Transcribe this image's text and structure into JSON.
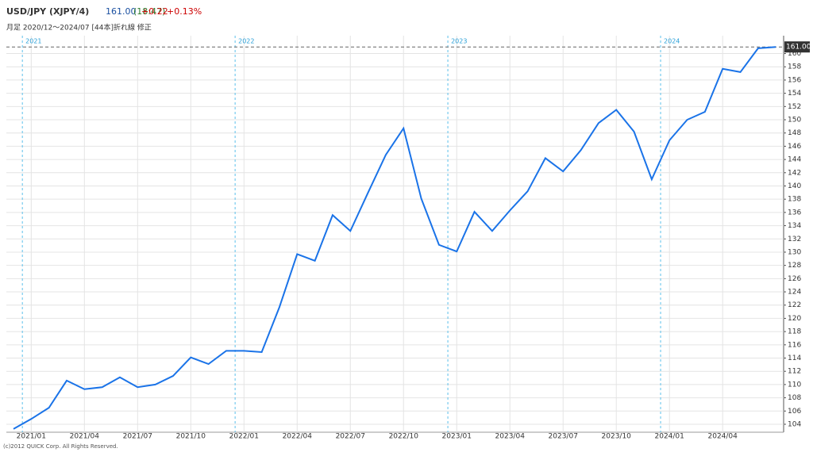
{
  "header": {
    "symbol": "USD/JPY (XJPY/4)",
    "price": "161.00",
    "time": "(18:47)",
    "change": "+0.22",
    "change_pct": "+0.13%",
    "subtitle": "月足  2020/12～2024/07 [44本]折れ線 修正"
  },
  "footer": "(c)2012 QUICK Corp. All Rights Reserved.",
  "chart_data": {
    "type": "line",
    "color": "#1a73e8",
    "categories": [
      null,
      "2021/01",
      null,
      null,
      "2021/04",
      null,
      null,
      "2021/07",
      null,
      null,
      "2021/10",
      null,
      null,
      "2022/01",
      null,
      null,
      "2022/04",
      null,
      null,
      "2022/07",
      null,
      null,
      "2022/10",
      null,
      null,
      "2023/01",
      null,
      null,
      "2023/04",
      null,
      null,
      "2023/07",
      null,
      null,
      "2023/10",
      null,
      null,
      "2024/01",
      null,
      null,
      "2024/04",
      null,
      null,
      null
    ],
    "values": [
      103.3,
      104.8,
      106.5,
      110.6,
      109.3,
      109.6,
      111.1,
      109.6,
      110.0,
      111.3,
      114.1,
      113.1,
      115.1,
      115.1,
      114.9,
      121.7,
      129.7,
      128.7,
      135.6,
      133.2,
      139.0,
      144.7,
      148.7,
      138.1,
      131.1,
      130.1,
      136.1,
      133.2,
      136.3,
      139.2,
      144.2,
      142.2,
      145.4,
      149.5,
      151.5,
      148.2,
      141.0,
      146.9,
      150.0,
      151.2,
      157.7,
      157.2,
      160.8,
      161.0
    ],
    "year_markers": [
      "2021",
      "2022",
      "2023",
      "2024"
    ],
    "ylim": [
      102.8,
      162.7
    ],
    "yticks": [
      104,
      106,
      108,
      110,
      112,
      114,
      116,
      118,
      120,
      122,
      124,
      126,
      128,
      130,
      132,
      134,
      136,
      138,
      140,
      142,
      144,
      146,
      148,
      150,
      152,
      154,
      156,
      158,
      160
    ],
    "grid": true
  }
}
